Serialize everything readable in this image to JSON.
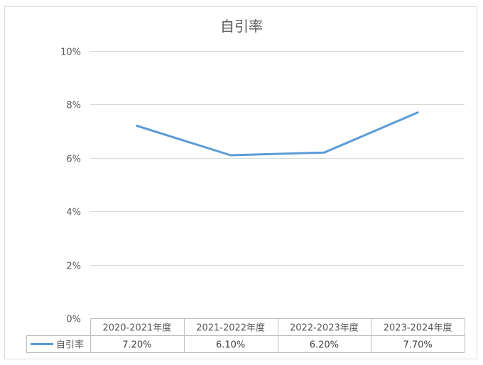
{
  "chart_data": {
    "type": "line",
    "title": "自引率",
    "categories": [
      "2020-2021年度",
      "2021-2022年度",
      "2022-2023年度",
      "2023-2024年度"
    ],
    "series": [
      {
        "name": "自引率",
        "values": [
          7.2,
          6.1,
          6.2,
          7.7
        ],
        "value_labels": [
          "7.20%",
          "6.10%",
          "6.20%",
          "7.70%"
        ],
        "color": "#5b9bd5"
      }
    ],
    "ylim": [
      0,
      10
    ],
    "yticks": [
      0,
      2,
      4,
      6,
      8,
      10
    ],
    "ytick_labels": [
      "0%",
      "2%",
      "4%",
      "6%",
      "8%",
      "10%"
    ],
    "grid": true,
    "legend": "data-table-left",
    "data_table": true
  }
}
